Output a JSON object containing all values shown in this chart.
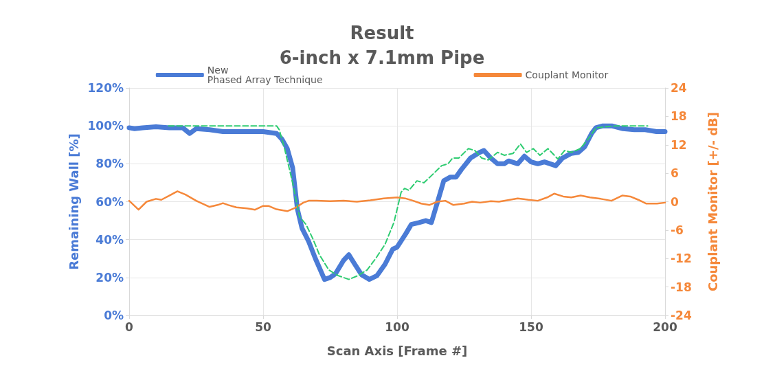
{
  "chart_data": {
    "type": "line",
    "title": "Result",
    "subtitle": "6-inch x 7.1mm Pipe",
    "xlabel": "Scan Axis [Frame #]",
    "ylabel": "Remaining Wall [%]",
    "y2label": "Couplant Monitor [+/- dB]",
    "xlim": [
      0,
      200
    ],
    "xticks": [
      0,
      50,
      100,
      150,
      200
    ],
    "ylim": [
      0,
      120
    ],
    "yticks": [
      {
        "value": 0,
        "label": "0%"
      },
      {
        "value": 20,
        "label": "20%"
      },
      {
        "value": 40,
        "label": "40%"
      },
      {
        "value": 60,
        "label": "60%"
      },
      {
        "value": 80,
        "label": "80%"
      },
      {
        "value": 100,
        "label": "100%"
      },
      {
        "value": 120,
        "label": "120%"
      }
    ],
    "y2lim": [
      -24,
      24
    ],
    "y2ticks": [
      -24,
      -18,
      -12,
      -6,
      0,
      6,
      12,
      18,
      24
    ],
    "grid": true,
    "legend": "top",
    "marker": "none",
    "series": [
      {
        "name": "New\nPhased Array Technique",
        "color": "#4a7bd6",
        "line_style": "solid",
        "x": [
          0,
          2,
          5,
          10,
          15,
          20,
          22.6,
          25,
          30,
          35,
          40,
          45,
          50,
          55,
          57,
          59,
          61,
          62.8,
          64.5,
          67,
          69.5,
          72.9,
          75,
          77,
          80,
          82,
          84.2,
          86.7,
          89.6,
          92.5,
          95.5,
          98.4,
          100,
          103.2,
          105.3,
          108.2,
          110.7,
          112.8,
          114.9,
          117.4,
          119.9,
          122,
          124,
          127.4,
          130.8,
          132.4,
          135,
          137.5,
          140,
          141.6,
          145,
          147.5,
          150,
          152.5,
          155,
          159.2,
          161.7,
          165,
          167.6,
          170,
          172.6,
          174.2,
          176.8,
          180.1,
          184.3,
          188.5,
          192.6,
          196.8,
          200
        ],
        "values": [
          99,
          98.5,
          99,
          99.5,
          99,
          99,
          96,
          98.5,
          98,
          97,
          97,
          97,
          97,
          96,
          93,
          88,
          78,
          56,
          46,
          39,
          30,
          19,
          20,
          22,
          29,
          32,
          27,
          21.5,
          19,
          21,
          27,
          35,
          36,
          43,
          48,
          49,
          50,
          49,
          59,
          71,
          73,
          73,
          77,
          83,
          86,
          87,
          83,
          80,
          80,
          81.5,
          80,
          84,
          81,
          80,
          81,
          79,
          83,
          85.5,
          86,
          89,
          96,
          99,
          100,
          100,
          98.5,
          98,
          98,
          97,
          97
        ]
      },
      {
        "name": "Couplant Monitor",
        "color": "#f5883a",
        "axis": "y2",
        "line_style": "solid",
        "x": [
          0,
          3.5,
          6.5,
          10,
          12,
          15,
          18,
          21,
          25,
          30,
          33,
          35,
          37,
          40,
          44,
          47,
          50,
          52,
          55,
          59,
          62,
          65,
          67,
          70,
          75,
          80,
          85,
          90,
          95,
          100,
          103,
          106,
          109,
          112,
          115,
          118,
          121,
          125,
          128,
          131,
          135,
          138,
          141,
          145,
          149,
          152.5,
          156,
          158.6,
          162,
          165,
          168.5,
          172,
          176,
          180,
          184,
          187,
          190,
          193,
          197,
          200
        ],
        "values": [
          0.2,
          -1.7,
          0,
          0.6,
          0.4,
          1.3,
          2.2,
          1.5,
          0.2,
          -1.1,
          -0.7,
          -0.3,
          -0.7,
          -1.2,
          -1.4,
          -1.7,
          -0.9,
          -0.9,
          -1.6,
          -2,
          -1.3,
          -0.2,
          0.2,
          0.2,
          0.1,
          0.2,
          0,
          0.3,
          0.7,
          0.9,
          0.7,
          0.2,
          -0.4,
          -0.7,
          0,
          0.2,
          -0.7,
          -0.4,
          0,
          -0.2,
          0.1,
          0,
          0.3,
          0.7,
          0.4,
          0.2,
          0.9,
          1.7,
          1.1,
          0.9,
          1.3,
          0.9,
          0.6,
          0.2,
          1.3,
          1.1,
          0.4,
          -0.4,
          -0.4,
          -0.2
        ]
      },
      {
        "color": "#2ecc71",
        "line_style": "dashed",
        "x": [
          14.7,
          55,
          56,
          58,
          61,
          63.6,
          66,
          68.7,
          71,
          74.5,
          78,
          82,
          85.4,
          88.8,
          92,
          95.5,
          98.8,
          100,
          101.5,
          102.8,
          104.4,
          107.4,
          110,
          113,
          116.6,
          119,
          120.7,
          123,
          126.6,
          129,
          131.6,
          134,
          137.5,
          140,
          143.3,
          146,
          148.3,
          150.8,
          153.3,
          156.3,
          160,
          162.5,
          165,
          168.4,
          171.8,
          174.2,
          181.8,
          193.5
        ],
        "values": [
          100,
          100,
          98,
          88,
          70,
          52,
          48,
          40,
          32,
          24,
          21,
          19,
          21,
          24,
          30,
          37.5,
          49,
          56,
          65,
          67,
          66,
          71,
          70,
          74,
          79,
          80,
          83,
          83,
          88,
          87,
          83,
          82,
          86,
          84.5,
          85.5,
          90.5,
          86,
          88,
          84.5,
          88,
          82.5,
          87,
          86,
          88,
          94,
          99,
          100,
          100
        ]
      }
    ]
  }
}
